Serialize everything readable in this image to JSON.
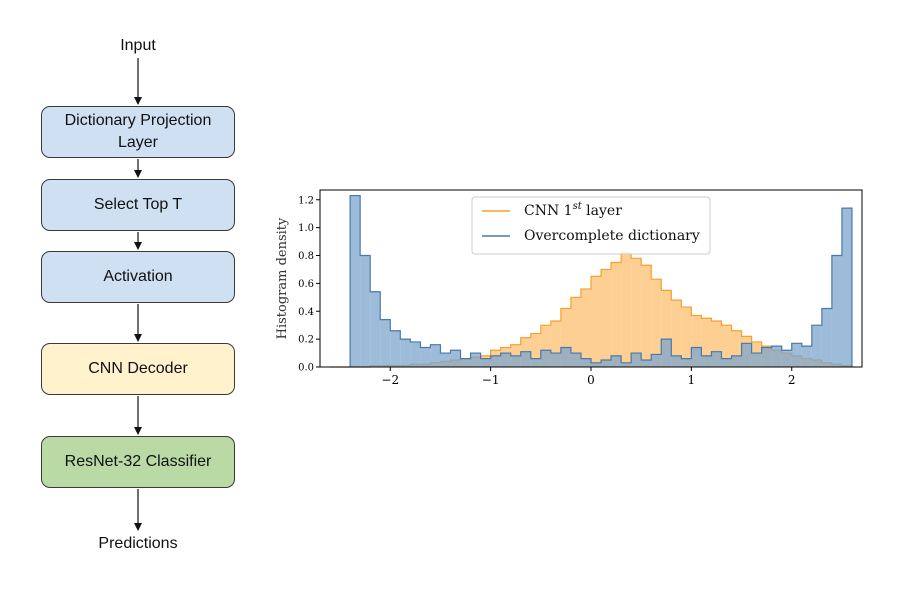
{
  "flowchart": {
    "input_label": "Input",
    "steps": [
      {
        "label": "Dictionary Projection Layer",
        "fill": "#cfe0f3"
      },
      {
        "label": "Select Top T",
        "fill": "#cfe0f3"
      },
      {
        "label": "Activation",
        "fill": "#cfe0f3"
      },
      {
        "label": "CNN Decoder",
        "fill": "#fff2cc"
      },
      {
        "label": "ResNet-32 Classifier",
        "fill": "#b9d9a5"
      }
    ],
    "output_label": "Predictions"
  },
  "chart_data": {
    "type": "histogram",
    "ylabel": "Histogram density",
    "xlabel": "",
    "xlim": [
      -2.7,
      2.7
    ],
    "ylim": [
      0,
      1.27
    ],
    "xticks": [
      -2,
      -1,
      0,
      1,
      2
    ],
    "yticks": [
      0.0,
      0.2,
      0.4,
      0.6,
      0.8,
      1.0,
      1.2
    ],
    "legend_position": "upper center",
    "series": [
      {
        "name": "CNN 1st layer",
        "legend_text": "CNN 1",
        "legend_sup": "st",
        "legend_rest": " layer",
        "color": "#f5a030",
        "fill": "#fdbf6f",
        "bin_start": -2.6,
        "bin_width": 0.1,
        "values": [
          0.0,
          0.0,
          0.0,
          0.0,
          0.01,
          0.01,
          0.01,
          0.01,
          0.02,
          0.02,
          0.03,
          0.04,
          0.05,
          0.06,
          0.07,
          0.08,
          0.12,
          0.14,
          0.16,
          0.21,
          0.24,
          0.3,
          0.33,
          0.42,
          0.5,
          0.56,
          0.65,
          0.7,
          0.75,
          0.82,
          0.78,
          0.73,
          0.63,
          0.55,
          0.48,
          0.43,
          0.37,
          0.35,
          0.33,
          0.3,
          0.26,
          0.22,
          0.18,
          0.15,
          0.12,
          0.1,
          0.08,
          0.06,
          0.05,
          0.03,
          0.02,
          0.01
        ]
      },
      {
        "name": "Overcomplete dictionary",
        "legend_text": "Overcomplete dictionary",
        "legend_sup": "",
        "legend_rest": "",
        "color": "#4a78a8",
        "fill": "#7ba6cd",
        "bin_start": -2.4,
        "bin_width": 0.1,
        "values": [
          1.23,
          0.8,
          0.54,
          0.34,
          0.26,
          0.2,
          0.18,
          0.14,
          0.16,
          0.1,
          0.12,
          0.06,
          0.1,
          0.06,
          0.08,
          0.1,
          0.08,
          0.11,
          0.06,
          0.12,
          0.1,
          0.14,
          0.1,
          0.06,
          0.03,
          0.05,
          0.08,
          0.03,
          0.1,
          0.05,
          0.09,
          0.2,
          0.08,
          0.06,
          0.14,
          0.08,
          0.11,
          0.06,
          0.08,
          0.17,
          0.1,
          0.14,
          0.15,
          0.12,
          0.17,
          0.15,
          0.3,
          0.42,
          0.8,
          1.14
        ]
      }
    ]
  }
}
